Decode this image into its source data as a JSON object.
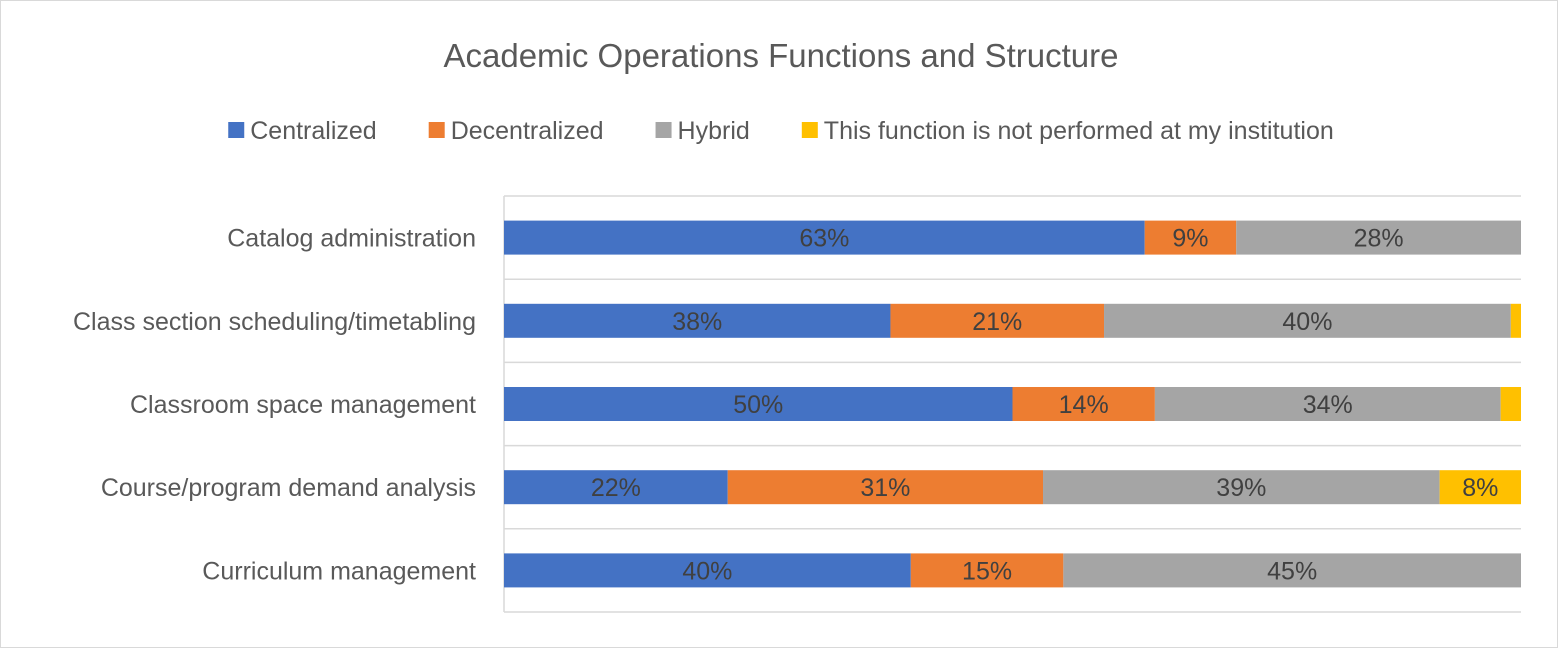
{
  "chart_data": {
    "type": "bar",
    "orientation": "horizontal",
    "stacked": true,
    "title": "Academic Operations Functions and Structure",
    "legend_position": "top",
    "categories": [
      "Catalog administration",
      "Class section scheduling/timetabling",
      "Classroom space management",
      "Course/program demand analysis",
      "Curriculum management"
    ],
    "series": [
      {
        "name": "Centralized",
        "color": "#4472c4",
        "values": [
          63,
          38,
          50,
          22,
          40
        ],
        "labels": [
          "63%",
          "38%",
          "50%",
          "22%",
          "40%"
        ]
      },
      {
        "name": "Decentralized",
        "color": "#ed7d31",
        "values": [
          9,
          21,
          14,
          31,
          15
        ],
        "labels": [
          "9%",
          "21%",
          "14%",
          "31%",
          "15%"
        ]
      },
      {
        "name": "Hybrid",
        "color": "#a5a5a5",
        "values": [
          28,
          40,
          34,
          39,
          45
        ],
        "labels": [
          "28%",
          "40%",
          "34%",
          "39%",
          "45%"
        ]
      },
      {
        "name": "This function is not performed at my institution",
        "color": "#ffc000",
        "values": [
          0,
          1,
          2,
          8,
          0
        ],
        "labels": [
          "",
          "",
          "",
          "8%",
          ""
        ]
      }
    ],
    "xlim": [
      0,
      100
    ],
    "grid": true,
    "colors": {
      "text": "#595959",
      "bar_label": "#404040",
      "gridline": "#d9d9d9"
    }
  }
}
